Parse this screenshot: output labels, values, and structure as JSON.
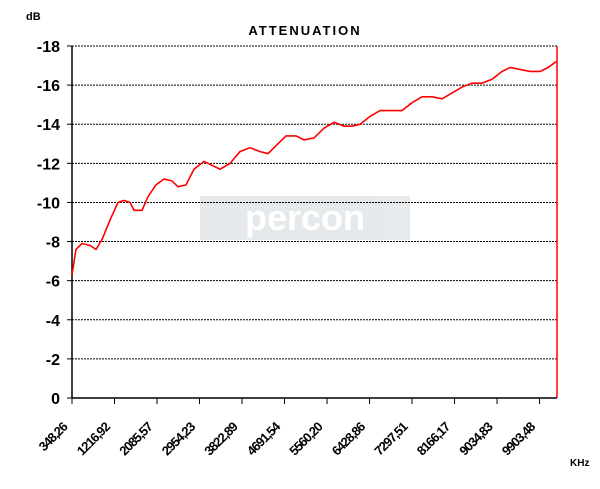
{
  "chart_data": {
    "type": "line",
    "title": "ATTENUATION",
    "y_label": "dB",
    "x_label": "KHz",
    "watermark": "percon",
    "xlim": [
      348.26,
      10260
    ],
    "xticks": [
      {
        "value": 348.26,
        "label": "348,26"
      },
      {
        "value": 1216.92,
        "label": "1216,92"
      },
      {
        "value": 2085.57,
        "label": "2085,57"
      },
      {
        "value": 2954.23,
        "label": "2954,23"
      },
      {
        "value": 3822.89,
        "label": "3822,89"
      },
      {
        "value": 4691.54,
        "label": "4691,54"
      },
      {
        "value": 5560.2,
        "label": "5560,20"
      },
      {
        "value": 6428.86,
        "label": "6428,86"
      },
      {
        "value": 7297.51,
        "label": "7297,51"
      },
      {
        "value": 8166.17,
        "label": "8166,17"
      },
      {
        "value": 9034.83,
        "label": "9034,83"
      },
      {
        "value": 9903.48,
        "label": "9903,48"
      }
    ],
    "ylim": [
      0,
      -18
    ],
    "yticks": [
      0,
      -2,
      -4,
      -6,
      -8,
      -10,
      -12,
      -14,
      -16,
      -18
    ],
    "grid": true,
    "series": [
      {
        "name": "Attenuation",
        "color": "#ff0000",
        "x": [
          348,
          430,
          553,
          716,
          839,
          961,
          1125,
          1288,
          1411,
          1534,
          1616,
          1779,
          1902,
          2065,
          2229,
          2392,
          2515,
          2678,
          2842,
          3046,
          3210,
          3373,
          3578,
          3782,
          3987,
          4191,
          4355,
          4518,
          4722,
          4927,
          5090,
          5295,
          5499,
          5704,
          5908,
          6071,
          6235,
          6439,
          6644,
          6889,
          7093,
          7298,
          7502,
          7707,
          7911,
          8116,
          8320,
          8524,
          8729,
          8933,
          9138,
          9301,
          9506,
          9710,
          9915,
          10078,
          10242
        ],
        "values": [
          -6.3,
          -7.6,
          -7.9,
          -7.8,
          -7.6,
          -8.1,
          -9.1,
          -10.0,
          -10.1,
          -10.0,
          -9.6,
          -9.6,
          -10.3,
          -10.9,
          -11.2,
          -11.1,
          -10.8,
          -10.9,
          -11.7,
          -12.1,
          -11.9,
          -11.7,
          -12.0,
          -12.6,
          -12.8,
          -12.6,
          -12.5,
          -12.9,
          -13.4,
          -13.4,
          -13.2,
          -13.3,
          -13.8,
          -14.1,
          -13.9,
          -13.9,
          -14.0,
          -14.4,
          -14.7,
          -14.7,
          -14.7,
          -15.1,
          -15.4,
          -15.4,
          -15.3,
          -15.6,
          -15.9,
          -16.1,
          -16.1,
          -16.3,
          -16.7,
          -16.9,
          -16.8,
          -16.7,
          -16.7,
          -16.9,
          -17.2
        ]
      }
    ]
  }
}
